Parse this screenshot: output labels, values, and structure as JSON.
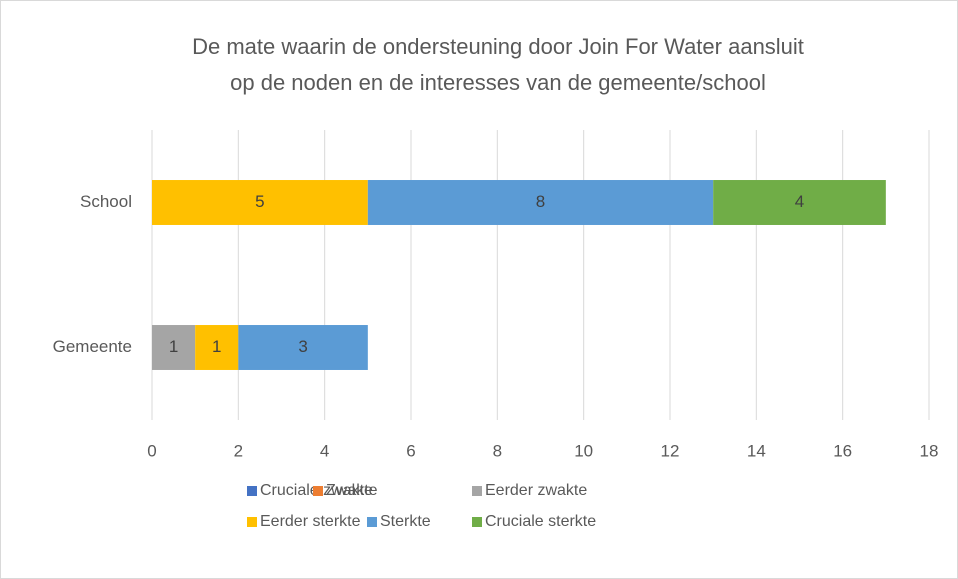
{
  "chart_data": {
    "type": "bar",
    "orientation": "horizontal",
    "stacked": true,
    "title": [
      "De mate waarin de ondersteuning door Join For Water aansluit",
      "op de noden en de interesses van de gemeente/school"
    ],
    "categories": [
      "Gemeente",
      "School"
    ],
    "series": [
      {
        "name": "Cruciale zwakte",
        "color": "#4472c4",
        "values": [
          0,
          0
        ]
      },
      {
        "name": "Zwakte",
        "color": "#ed7d31",
        "values": [
          0,
          0
        ]
      },
      {
        "name": "Eerder zwakte",
        "color": "#a5a5a5",
        "values": [
          1,
          0
        ]
      },
      {
        "name": "Eerder sterkte",
        "color": "#ffc000",
        "values": [
          1,
          5
        ]
      },
      {
        "name": "Sterkte",
        "color": "#5b9bd5",
        "values": [
          3,
          8
        ]
      },
      {
        "name": "Cruciale sterkte",
        "color": "#70ad47",
        "values": [
          0,
          4
        ]
      }
    ],
    "xlim": [
      0,
      18
    ],
    "xticks": [
      0,
      2,
      4,
      6,
      8,
      10,
      12,
      14,
      16,
      18
    ],
    "grid": true,
    "legend": "bottom"
  }
}
